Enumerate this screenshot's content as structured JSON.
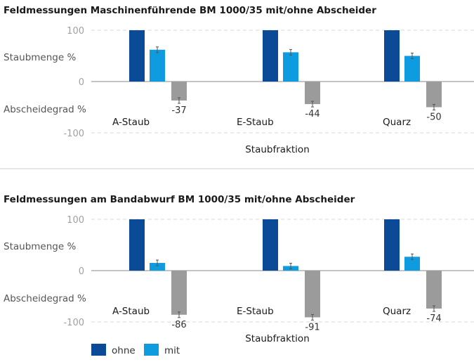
{
  "colors": {
    "ohne": "#0a4a96",
    "mit": "#0f9be0",
    "abscheidegrad": "#9b9b9b",
    "grid": "#d8d8d8",
    "axis": "#888888"
  },
  "legend": [
    {
      "key": "ohne",
      "label": "ohne"
    },
    {
      "key": "mit",
      "label": "mit"
    }
  ],
  "chart_data": [
    {
      "type": "bar",
      "title": "Feldmessungen Maschinenführende BM 1000/35 mit/ohne Abscheider",
      "xlabel": "Staubfraktion",
      "ylabels": [
        "Staubmenge %",
        "Abscheidegrad %"
      ],
      "yticks": [
        "100",
        "0",
        "-100"
      ],
      "ylim": [
        -100,
        100
      ],
      "grid": true,
      "categories": [
        "A-Staub",
        "E-Staub",
        "Quarz"
      ],
      "series": [
        {
          "name": "ohne",
          "values": [
            100,
            100,
            100
          ]
        },
        {
          "name": "mit",
          "values": [
            62,
            57,
            50
          ]
        },
        {
          "values": [
            -37,
            -44,
            -50
          ],
          "labels": [
            "-37",
            "-44",
            "-50"
          ]
        }
      ]
    },
    {
      "type": "bar",
      "title": "Feldmessungen am Bandabwurf BM 1000/35 mit/ohne Abscheider",
      "xlabel": "Staubfraktion",
      "ylabels": [
        "Staubmenge %",
        "Abscheidegrad %"
      ],
      "yticks": [
        "100",
        "0",
        "-100"
      ],
      "ylim": [
        -100,
        100
      ],
      "grid": true,
      "categories": [
        "A-Staub",
        "E-Staub",
        "Quarz"
      ],
      "series": [
        {
          "name": "ohne",
          "values": [
            100,
            100,
            100
          ]
        },
        {
          "name": "mit",
          "values": [
            15,
            9,
            27
          ]
        },
        {
          "values": [
            -86,
            -91,
            -74
          ],
          "labels": [
            "-86",
            "-91",
            "-74"
          ]
        }
      ]
    }
  ]
}
